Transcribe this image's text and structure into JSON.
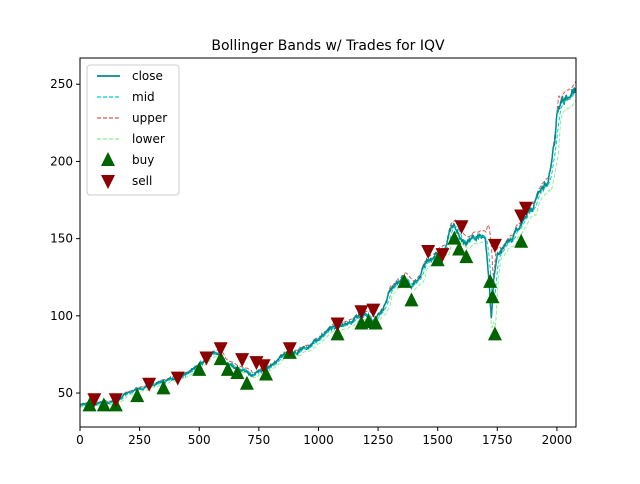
{
  "chart_data": {
    "type": "line",
    "title": "Bollinger Bands w/ Trades for IQV",
    "xlabel": "",
    "ylabel": "",
    "xlim": [
      0,
      2080
    ],
    "ylim": [
      28,
      267
    ],
    "x_ticks": [
      0,
      250,
      500,
      750,
      1000,
      1250,
      1500,
      1750,
      2000
    ],
    "y_ticks": [
      50,
      100,
      150,
      200,
      250
    ],
    "grid": false,
    "legend_position": "upper-left",
    "legend": [
      {
        "label": "close",
        "style": "solid",
        "color": "#008B8B",
        "marker": "line"
      },
      {
        "label": "mid",
        "style": "dashed",
        "color": "#00CED1",
        "marker": "line"
      },
      {
        "label": "upper",
        "style": "dashed",
        "color": "#CD5C5C",
        "marker": "line"
      },
      {
        "label": "lower",
        "style": "dashed",
        "color": "#90EE90",
        "marker": "line"
      },
      {
        "label": "buy",
        "style": "none",
        "color": "#006400",
        "marker": "triangle-up"
      },
      {
        "label": "sell",
        "style": "none",
        "color": "#8B0000",
        "marker": "triangle-down"
      }
    ],
    "close": {
      "x": [
        0,
        60,
        120,
        160,
        200,
        240,
        280,
        320,
        360,
        400,
        450,
        500,
        540,
        580,
        600,
        640,
        680,
        720,
        760,
        800,
        850,
        900,
        950,
        1000,
        1050,
        1100,
        1150,
        1200,
        1230,
        1260,
        1300,
        1330,
        1360,
        1390,
        1420,
        1450,
        1480,
        1500,
        1530,
        1550,
        1570,
        1600,
        1630,
        1660,
        1700,
        1715,
        1725,
        1735,
        1750,
        1780,
        1800,
        1830,
        1860,
        1900,
        1940,
        1960,
        1980,
        1990,
        2000,
        2020,
        2050,
        2080
      ],
      "y": [
        42,
        43,
        44,
        45,
        50,
        52,
        54,
        56,
        58,
        60,
        63,
        68,
        74,
        76,
        70,
        67,
        65,
        62,
        65,
        67,
        74,
        76,
        79,
        85,
        92,
        94,
        98,
        100,
        96,
        103,
        116,
        120,
        124,
        118,
        125,
        135,
        138,
        140,
        143,
        155,
        158,
        150,
        148,
        151,
        150,
        122,
        98,
        122,
        140,
        145,
        148,
        155,
        163,
        170,
        185,
        186,
        200,
        212,
        233,
        240,
        245,
        250
      ]
    },
    "buy": {
      "x": [
        40,
        100,
        150,
        240,
        350,
        500,
        590,
        620,
        660,
        700,
        780,
        880,
        1080,
        1180,
        1210,
        1240,
        1360,
        1390,
        1500,
        1570,
        1590,
        1620,
        1720,
        1730,
        1740,
        1850
      ],
      "y": [
        42,
        42,
        42,
        48,
        53,
        65,
        72,
        65,
        63,
        56,
        62,
        76,
        88,
        95,
        96,
        95,
        122,
        110,
        136,
        150,
        143,
        138,
        122,
        112,
        88,
        148
      ]
    },
    "sell": {
      "x": [
        60,
        150,
        290,
        410,
        530,
        590,
        680,
        740,
        770,
        880,
        1080,
        1180,
        1230,
        1460,
        1520,
        1600,
        1740,
        1850,
        1870
      ],
      "y": [
        46,
        46,
        56,
        60,
        73,
        79,
        72,
        70,
        68,
        79,
        95,
        103,
        104,
        142,
        140,
        158,
        146,
        165,
        170
      ]
    }
  }
}
